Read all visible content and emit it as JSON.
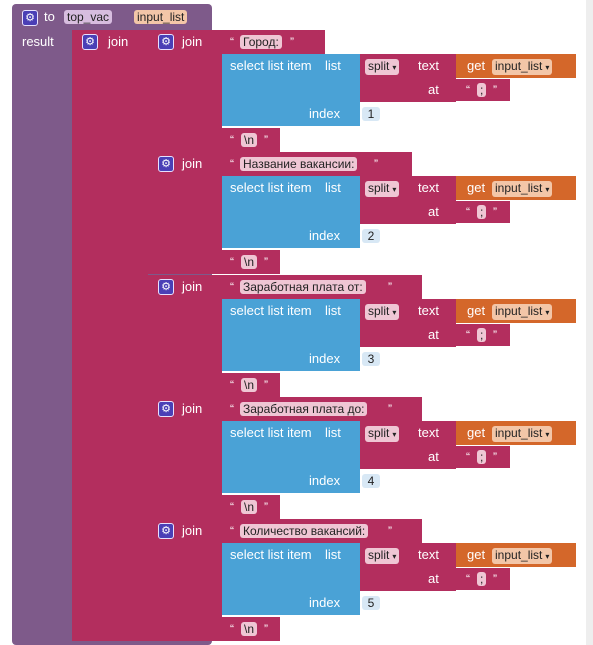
{
  "procedure": {
    "to_label": "to",
    "name": "top_vac",
    "param": "input_list",
    "result_label": "result"
  },
  "outer_join_label": "join",
  "join_label": "join",
  "select": {
    "label": "select list item",
    "list_label": "list",
    "index_label": "index"
  },
  "split": {
    "label": "split",
    "text_label": "text",
    "at_label": "at",
    "separator": ";"
  },
  "get": {
    "label": "get",
    "variable": "input_list"
  },
  "quote_open": "“",
  "quote_close": "”",
  "newline_text": "\\n",
  "sections": [
    {
      "header": "Город:",
      "index": "1"
    },
    {
      "header": "Название вакансии:",
      "index": "2"
    },
    {
      "header": "Заработная плата от:",
      "index": "3"
    },
    {
      "header": "Заработная плата до:",
      "index": "4"
    },
    {
      "header": "Количество вакансий:",
      "index": "5"
    }
  ],
  "colors": {
    "procedure": "#7e5a8a",
    "text_join": "#b32e5e",
    "list": "#4aa2d6",
    "variable": "#d4672a",
    "gear": "#4a3fb6"
  }
}
